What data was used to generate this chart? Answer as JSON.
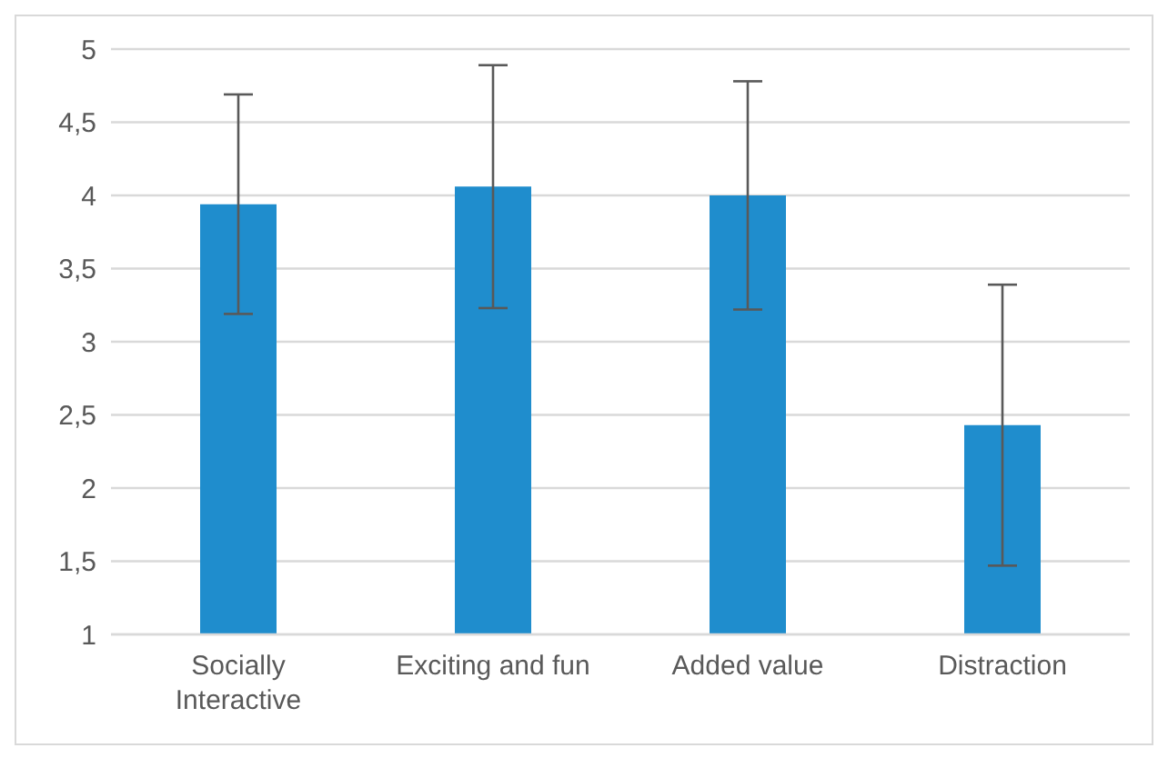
{
  "chart_data": {
    "type": "bar",
    "categories": [
      "Socially Interactive",
      "Exciting and fun",
      "Added value",
      "Distraction"
    ],
    "values": [
      3.94,
      4.06,
      4.0,
      2.43
    ],
    "errors": [
      0.75,
      0.83,
      0.78,
      0.96
    ],
    "color": "#1f8dcd",
    "ylim": [
      1,
      5
    ],
    "yticks": [
      1,
      {
        "value": 1.5,
        "label": "1,5"
      },
      2,
      {
        "value": 2.5,
        "label": "2,5"
      },
      3,
      {
        "value": 3.5,
        "label": "3,5"
      },
      4,
      {
        "value": 4.5,
        "label": "4,5"
      },
      5
    ],
    "grid": "y"
  }
}
